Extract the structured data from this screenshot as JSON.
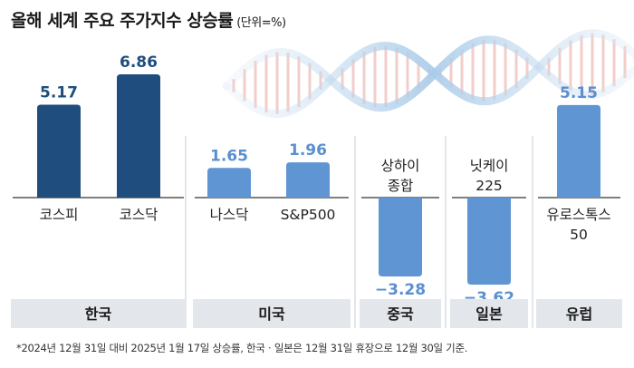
{
  "title": "올해 세계 주요 주가지수 상승률",
  "unit": "(단위=%)",
  "footnote": "*2024년 12월 31일 대비 2025년 1월 17일 상승률, 한국ㆍ일본은 12월 31일 휴장으로 12월 30일 기준.",
  "colors": {
    "korea_bar": "#1f4e7e",
    "korea_value": "#1f4e7e",
    "other_bar": "#5f95d2",
    "other_value": "#5b8fcf",
    "group_box": "#e3e6eb",
    "baseline": "#555555",
    "divider": "#c7ccd3"
  },
  "chart_data": {
    "type": "bar",
    "title": "올해 세계 주요 주가지수 상승률",
    "ylabel": "(단위=%)",
    "ylim": [
      -4.5,
      7.5
    ],
    "groups": [
      {
        "name": "한국",
        "items": [
          {
            "label": "코스피",
            "value": 5.17,
            "value_label": "5.17"
          },
          {
            "label": "코스닥",
            "value": 6.86,
            "value_label": "6.86"
          }
        ]
      },
      {
        "name": "미국",
        "items": [
          {
            "label": "나스닥",
            "value": 1.65,
            "value_label": "1.65"
          },
          {
            "label": "S&P500",
            "value": 1.96,
            "value_label": "1.96"
          }
        ]
      },
      {
        "name": "중국",
        "items": [
          {
            "label": "상하이\n종합",
            "value": -3.28,
            "value_label": "−3.28"
          }
        ]
      },
      {
        "name": "일본",
        "items": [
          {
            "label": "닛케이\n225",
            "value": -3.62,
            "value_label": "−3.62"
          }
        ]
      },
      {
        "name": "유럽",
        "items": [
          {
            "label": "유로스톡스\n50",
            "value": 5.15,
            "value_label": "5.15"
          }
        ]
      }
    ]
  }
}
